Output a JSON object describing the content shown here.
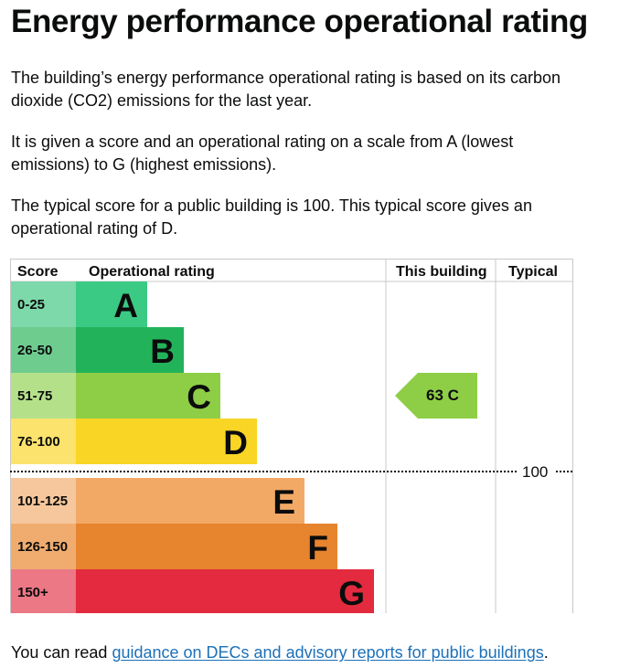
{
  "page": {
    "title": "Energy performance operational rating",
    "paragraphs": [
      "The building’s energy performance operational rating is based on its carbon dioxide (CO2) emissions for the last year.",
      "It is given a score and an operational rating on a scale from A (lowest emissions) to G (highest emissions).",
      "The typical score for a public building is 100. This typical score gives an operational rating of D."
    ],
    "footer": {
      "prefix": "You can read ",
      "link_text": "guidance on DECs and advisory reports for public buildings",
      "suffix": "."
    }
  },
  "chart_data": {
    "type": "table",
    "columns": [
      "Score",
      "Operational rating",
      "This building",
      "Typical"
    ],
    "bands": [
      {
        "score": "0-25",
        "rating": "A",
        "color": "#3bca84",
        "score_bg": "#7dd8aa"
      },
      {
        "score": "26-50",
        "rating": "B",
        "color": "#22b35a",
        "score_bg": "#6fcc8f"
      },
      {
        "score": "51-75",
        "rating": "C",
        "color": "#8dce46",
        "score_bg": "#b5e08a"
      },
      {
        "score": "76-100",
        "rating": "D",
        "color": "#f9d525",
        "score_bg": "#fbe36d"
      },
      {
        "score": "101-125",
        "rating": "E",
        "color": "#f2a966",
        "score_bg": "#f6c79c"
      },
      {
        "score": "126-150",
        "rating": "F",
        "color": "#e7842e",
        "score_bg": "#f0ac6f"
      },
      {
        "score": "150+",
        "rating": "G",
        "color": "#e32a3e",
        "score_bg": "#ec7785"
      }
    ],
    "this_building": {
      "score": 63,
      "rating": "C",
      "label": "63 C",
      "color": "#8dce46"
    },
    "typical": {
      "score": 100,
      "label": "100"
    }
  }
}
